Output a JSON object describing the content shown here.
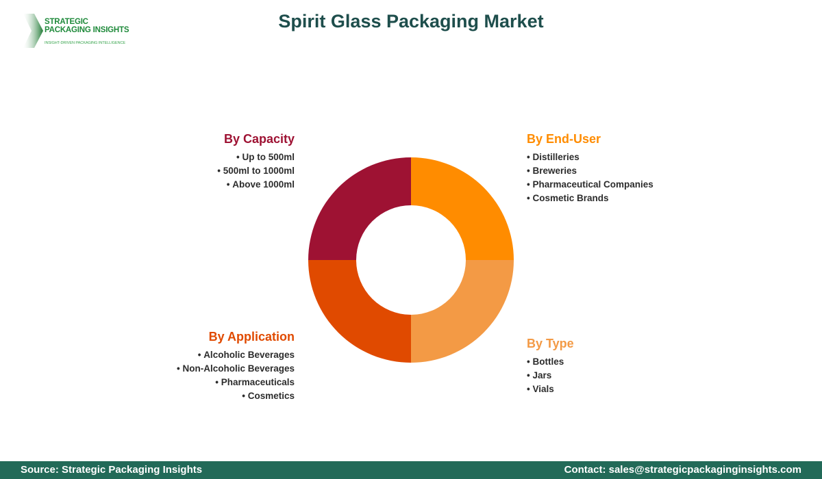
{
  "logo": {
    "name": "STRATEGIC\nPACKAGING INSIGHTS",
    "tagline": "INSIGHT-DRIVEN PACKAGING INTELLIGENCE"
  },
  "title": "Spirit Glass Packaging Market",
  "colors": {
    "capacity": "#9e1233",
    "end_user": "#ff8c00",
    "type": "#f39a45",
    "application": "#e04a00",
    "title": "#1e4e4c",
    "footer_bg": "#226a58"
  },
  "segments": {
    "capacity": {
      "title": "By Capacity",
      "items": [
        "Up to 500ml",
        "500ml to 1000ml",
        "Above 1000ml"
      ]
    },
    "end_user": {
      "title": "By End-User",
      "items": [
        "Distilleries",
        "Breweries",
        "Pharmaceutical Companies",
        "Cosmetic Brands"
      ]
    },
    "application": {
      "title": "By Application",
      "items": [
        "Alcoholic Beverages",
        "Non-Alcoholic Beverages",
        "Pharmaceuticals",
        "Cosmetics"
      ]
    },
    "type": {
      "title": "By Type",
      "items": [
        "Bottles",
        "Jars",
        "Vials"
      ]
    }
  },
  "chart_data": {
    "type": "pie",
    "subtype": "donut",
    "title": "Spirit Glass Packaging Market",
    "categories": [
      "By End-User",
      "By Type",
      "By Application",
      "By Capacity"
    ],
    "values": [
      25,
      25,
      25,
      25
    ],
    "colors": [
      "#ff8c00",
      "#f39a45",
      "#e04a00",
      "#9e1233"
    ],
    "start_angle": "12 o'clock, clockwise",
    "legend": "segment labels placed around donut quadrants"
  },
  "footer": {
    "source": "Source: Strategic Packaging Insights",
    "contact": "Contact: sales@strategicpackaginginsights.com"
  }
}
